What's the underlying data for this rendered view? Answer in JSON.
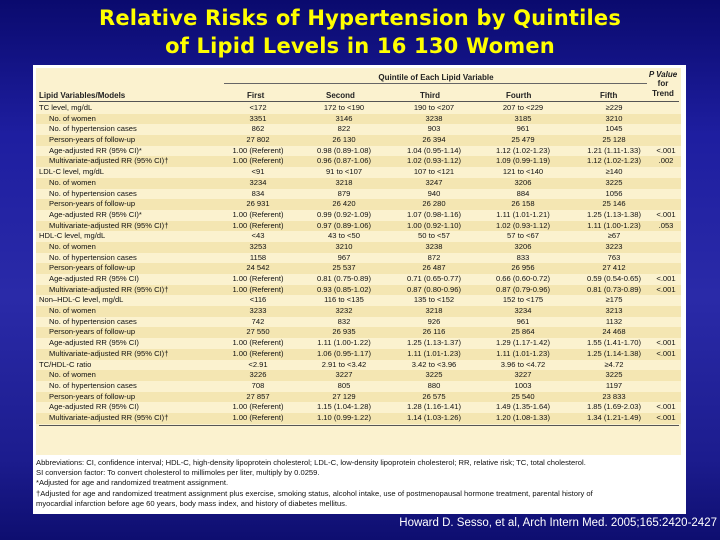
{
  "slide": {
    "title_line1": "Relative Risks of Hypertension by Quintiles",
    "title_line2": "of Lipid Levels in 16 130 Women",
    "citation": "Howard D. Sesso, et al, Arch Intern Med. 2005;165:2420-2427"
  },
  "table": {
    "quintile_header": "Quintile of Each Lipid Variable",
    "col_label": "Lipid Variables/Models",
    "columns": [
      "First",
      "Second",
      "Third",
      "Fourth",
      "Fifth"
    ],
    "pvalue_header": [
      "P Value",
      "for",
      "Trend"
    ],
    "rows": [
      {
        "label": "TC level, mg/dL",
        "indent": false,
        "cells": [
          "<172",
          "172 to <190",
          "190 to <207",
          "207 to <229",
          "≥229"
        ],
        "p": ""
      },
      {
        "label": "No. of women",
        "indent": true,
        "cells": [
          "3351",
          "3146",
          "3238",
          "3185",
          "3210"
        ],
        "p": ""
      },
      {
        "label": "No. of hypertension cases",
        "indent": true,
        "cells": [
          "862",
          "822",
          "903",
          "961",
          "1045"
        ],
        "p": ""
      },
      {
        "label": "Person-years of follow-up",
        "indent": true,
        "cells": [
          "27 802",
          "26 130",
          "26 394",
          "25 479",
          "25 128"
        ],
        "p": ""
      },
      {
        "label": "Age-adjusted RR (95% CI)*",
        "indent": true,
        "cells": [
          "1.00 (Referent)",
          "0.98 (0.89-1.08)",
          "1.04 (0.95-1.14)",
          "1.12 (1.02-1.23)",
          "1.21 (1.11-1.33)"
        ],
        "p": "<.001"
      },
      {
        "label": "Multivariate-adjusted RR (95% CI)†",
        "indent": true,
        "cells": [
          "1.00 (Referent)",
          "0.96 (0.87-1.06)",
          "1.02 (0.93-1.12)",
          "1.09 (0.99-1.19)",
          "1.12 (1.02-1.23)"
        ],
        "p": ".002"
      },
      {
        "label": "LDL-C level, mg/dL",
        "indent": false,
        "cells": [
          "<91",
          "91 to <107",
          "107 to <121",
          "121 to <140",
          "≥140"
        ],
        "p": ""
      },
      {
        "label": "No. of women",
        "indent": true,
        "cells": [
          "3234",
          "3218",
          "3247",
          "3206",
          "3225"
        ],
        "p": ""
      },
      {
        "label": "No. of hypertension cases",
        "indent": true,
        "cells": [
          "834",
          "879",
          "940",
          "884",
          "1056"
        ],
        "p": ""
      },
      {
        "label": "Person-years of follow-up",
        "indent": true,
        "cells": [
          "26 931",
          "26 420",
          "26 280",
          "26 158",
          "25 146"
        ],
        "p": ""
      },
      {
        "label": "Age-adjusted RR (95% CI)*",
        "indent": true,
        "cells": [
          "1.00 (Referent)",
          "0.99 (0.92-1.09)",
          "1.07 (0.98-1.16)",
          "1.11 (1.01-1.21)",
          "1.25 (1.13-1.38)"
        ],
        "p": "<.001"
      },
      {
        "label": "Multivariate-adjusted RR (95% CI)†",
        "indent": true,
        "cells": [
          "1.00 (Referent)",
          "0.97 (0.89-1.06)",
          "1.00 (0.92-1.10)",
          "1.02 (0.93-1.12)",
          "1.11 (1.00-1.23)"
        ],
        "p": ".053"
      },
      {
        "label": "HDL-C level, mg/dL",
        "indent": false,
        "cells": [
          "<43",
          "43 to <50",
          "50 to <57",
          "57 to <67",
          "≥67"
        ],
        "p": ""
      },
      {
        "label": "No. of women",
        "indent": true,
        "cells": [
          "3253",
          "3210",
          "3238",
          "3206",
          "3223"
        ],
        "p": ""
      },
      {
        "label": "No. of hypertension cases",
        "indent": true,
        "cells": [
          "1158",
          "967",
          "872",
          "833",
          "763"
        ],
        "p": ""
      },
      {
        "label": "Person-years of follow-up",
        "indent": true,
        "cells": [
          "24 542",
          "25 537",
          "26 487",
          "26 956",
          "27 412"
        ],
        "p": ""
      },
      {
        "label": "Age-adjusted RR (95% CI)",
        "indent": true,
        "cells": [
          "1.00 (Referent)",
          "0.81 (0.75-0.89)",
          "0.71 (0.65-0.77)",
          "0.66 (0.60-0.72)",
          "0.59 (0.54-0.65)"
        ],
        "p": "<.001"
      },
      {
        "label": "Multivariate-adjusted RR (95% CI)†",
        "indent": true,
        "cells": [
          "1.00 (Referent)",
          "0.93 (0.85-1.02)",
          "0.87 (0.80-0.96)",
          "0.87 (0.79-0.96)",
          "0.81 (0.73-0.89)"
        ],
        "p": "<.001"
      },
      {
        "label": "Non–HDL-C level, mg/dL",
        "indent": false,
        "cells": [
          "<116",
          "116 to <135",
          "135 to <152",
          "152 to <175",
          "≥175"
        ],
        "p": ""
      },
      {
        "label": "No. of women",
        "indent": true,
        "cells": [
          "3233",
          "3232",
          "3218",
          "3234",
          "3213"
        ],
        "p": ""
      },
      {
        "label": "No. of hypertension cases",
        "indent": true,
        "cells": [
          "742",
          "832",
          "926",
          "961",
          "1132"
        ],
        "p": ""
      },
      {
        "label": "Person-years of follow-up",
        "indent": true,
        "cells": [
          "27 550",
          "26 935",
          "26 116",
          "25 864",
          "24 468"
        ],
        "p": ""
      },
      {
        "label": "Age-adjusted RR (95% CI)",
        "indent": true,
        "cells": [
          "1.00 (Referent)",
          "1.11 (1.00-1.22)",
          "1.25 (1.13-1.37)",
          "1.29 (1.17-1.42)",
          "1.55 (1.41-1.70)"
        ],
        "p": "<.001"
      },
      {
        "label": "Multivariate-adjusted RR (95% CI)†",
        "indent": true,
        "cells": [
          "1.00 (Referent)",
          "1.06 (0.95-1.17)",
          "1.11 (1.01-1.23)",
          "1.11 (1.01-1.23)",
          "1.25 (1.14-1.38)"
        ],
        "p": "<.001"
      },
      {
        "label": "TC/HDL-C ratio",
        "indent": false,
        "cells": [
          "<2.91",
          "2.91 to <3.42",
          "3.42 to <3.96",
          "3.96 to <4.72",
          "≥4.72"
        ],
        "p": ""
      },
      {
        "label": "No. of women",
        "indent": true,
        "cells": [
          "3226",
          "3227",
          "3225",
          "3227",
          "3225"
        ],
        "p": ""
      },
      {
        "label": "No. of hypertension cases",
        "indent": true,
        "cells": [
          "708",
          "805",
          "880",
          "1003",
          "1197"
        ],
        "p": ""
      },
      {
        "label": "Person-years of follow-up",
        "indent": true,
        "cells": [
          "27 857",
          "27 129",
          "26 575",
          "25 540",
          "23 833"
        ],
        "p": ""
      },
      {
        "label": "Age-adjusted RR (95% CI)",
        "indent": true,
        "cells": [
          "1.00 (Referent)",
          "1.15 (1.04-1.28)",
          "1.28 (1.16-1.41)",
          "1.49 (1.35-1.64)",
          "1.85 (1.69-2.03)"
        ],
        "p": "<.001"
      },
      {
        "label": "Multivariate-adjusted RR (95% CI)†",
        "indent": true,
        "cells": [
          "1.00 (Referent)",
          "1.10 (0.99-1.22)",
          "1.14 (1.03-1.26)",
          "1.20 (1.08-1.33)",
          "1.34 (1.21-1.49)"
        ],
        "p": "<.001"
      }
    ],
    "footnotes": [
      "Abbreviations: CI, confidence interval; HDL-C, high-density lipoprotein cholesterol; LDL-C, low-density lipoprotein cholesterol; RR, relative risk; TC, total cholesterol.",
      "SI conversion factor: To convert cholesterol to millimoles per liter, multiply by 0.0259.",
      "*Adjusted for age and randomized treatment assignment.",
      "†Adjusted for age and randomized treatment assignment plus exercise, smoking status, alcohol intake, use of postmenopausal hormone treatment, parental history of",
      "myocardial infarction before age 60 years, body mass index, and history of diabetes mellitus."
    ]
  }
}
